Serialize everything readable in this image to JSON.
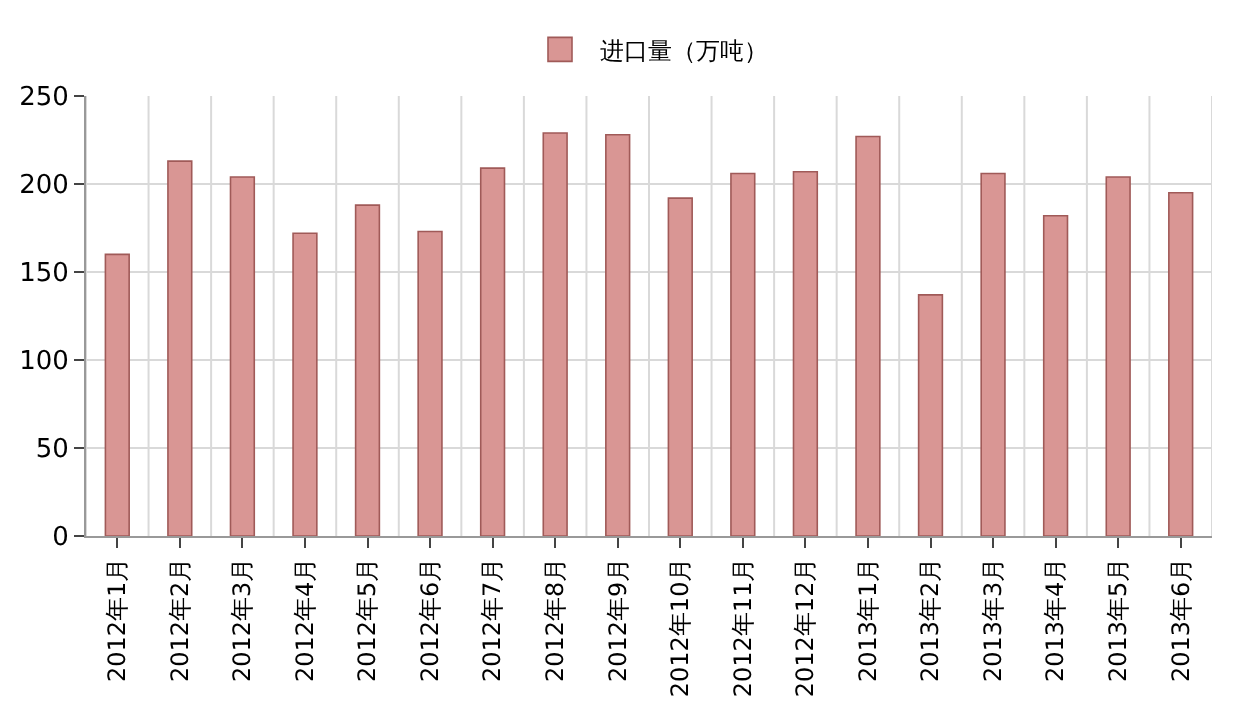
{
  "chart_data": {
    "type": "bar",
    "categories": [
      "2012年1月",
      "2012年2月",
      "2012年3月",
      "2012年4月",
      "2012年5月",
      "2012年6月",
      "2012年7月",
      "2012年8月",
      "2012年9月",
      "2012年10月",
      "2012年11月",
      "2012年12月",
      "2013年1月",
      "2013年2月",
      "2013年3月",
      "2013年4月",
      "2013年5月",
      "2013年6月"
    ],
    "series": [
      {
        "name": "进口量（万吨）",
        "color": "#d99694",
        "values": [
          160,
          213,
          204,
          172,
          188,
          173,
          209,
          229,
          228,
          192,
          206,
          207,
          227,
          137,
          206,
          182,
          204,
          195
        ]
      }
    ],
    "ylim": [
      0,
      250
    ],
    "yticks": [
      0,
      50,
      100,
      150,
      200,
      250
    ],
    "grid": true,
    "legend": "top"
  }
}
